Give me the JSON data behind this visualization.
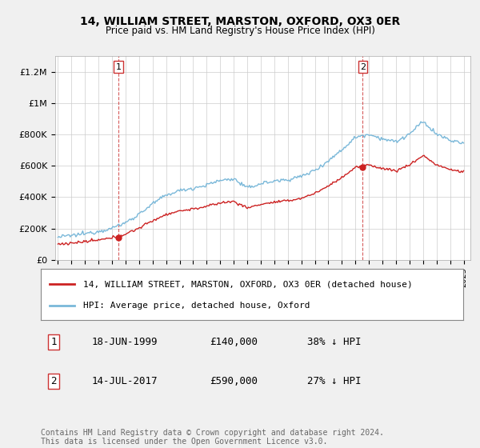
{
  "title": "14, WILLIAM STREET, MARSTON, OXFORD, OX3 0ER",
  "subtitle": "Price paid vs. HM Land Registry's House Price Index (HPI)",
  "legend_line1": "14, WILLIAM STREET, MARSTON, OXFORD, OX3 0ER (detached house)",
  "legend_line2": "HPI: Average price, detached house, Oxford",
  "transaction1_date": "18-JUN-1999",
  "transaction1_price": "£140,000",
  "transaction1_hpi": "38% ↓ HPI",
  "transaction2_date": "14-JUL-2017",
  "transaction2_price": "£590,000",
  "transaction2_hpi": "27% ↓ HPI",
  "footnote": "Contains HM Land Registry data © Crown copyright and database right 2024.\nThis data is licensed under the Open Government Licence v3.0.",
  "hpi_color": "#7ab8d9",
  "price_color": "#cc2222",
  "dashed_color": "#cc3333",
  "ylim": [
    0,
    1300000
  ],
  "yticks": [
    0,
    200000,
    400000,
    600000,
    800000,
    1000000,
    1200000
  ],
  "ytick_labels": [
    "£0",
    "£200K",
    "£400K",
    "£600K",
    "£800K",
    "£1M",
    "£1.2M"
  ],
  "background_color": "#f0f0f0",
  "plot_background": "#ffffff",
  "transaction1_year": 1999.47,
  "transaction1_value": 140000,
  "transaction2_year": 2017.54,
  "transaction2_value": 590000,
  "xmin": 1994.8,
  "xmax": 2025.5
}
